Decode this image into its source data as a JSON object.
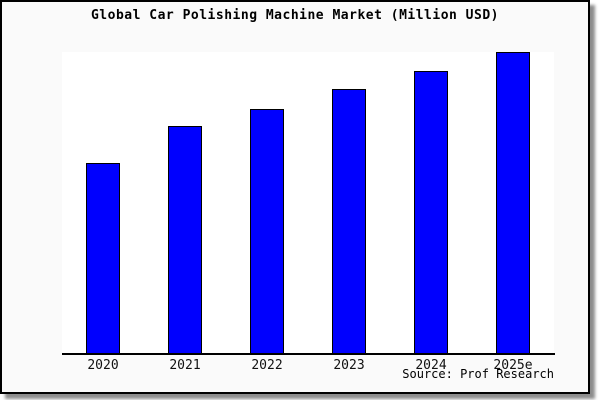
{
  "title": "Global Car Polishing Machine Market (Million USD)",
  "source_credit": "Source: Prof Research",
  "colors": {
    "bar_fill": "#0000fe",
    "bar_border": "#000000",
    "figure_background": "#fafafa",
    "plot_background": "#ffffff",
    "axis_line": "#000000",
    "frame_border": "#000000"
  },
  "chart_data": {
    "type": "bar",
    "title": "Global Car Polishing Machine Market (Million USD)",
    "categories": [
      "2020",
      "2021",
      "2022",
      "2023",
      "2024",
      "2025e"
    ],
    "values": [
      190,
      227,
      244,
      264,
      282,
      301
    ],
    "values_note": "relative units estimated from bar pixel heights; no y-axis scale, tick labels, or data labels are shown in the chart",
    "xlabel": "",
    "ylabel": "",
    "ylim": [
      0,
      301
    ],
    "grid": false,
    "legend": false,
    "y_axis_visible": false,
    "bar_color": "#0000fe"
  }
}
